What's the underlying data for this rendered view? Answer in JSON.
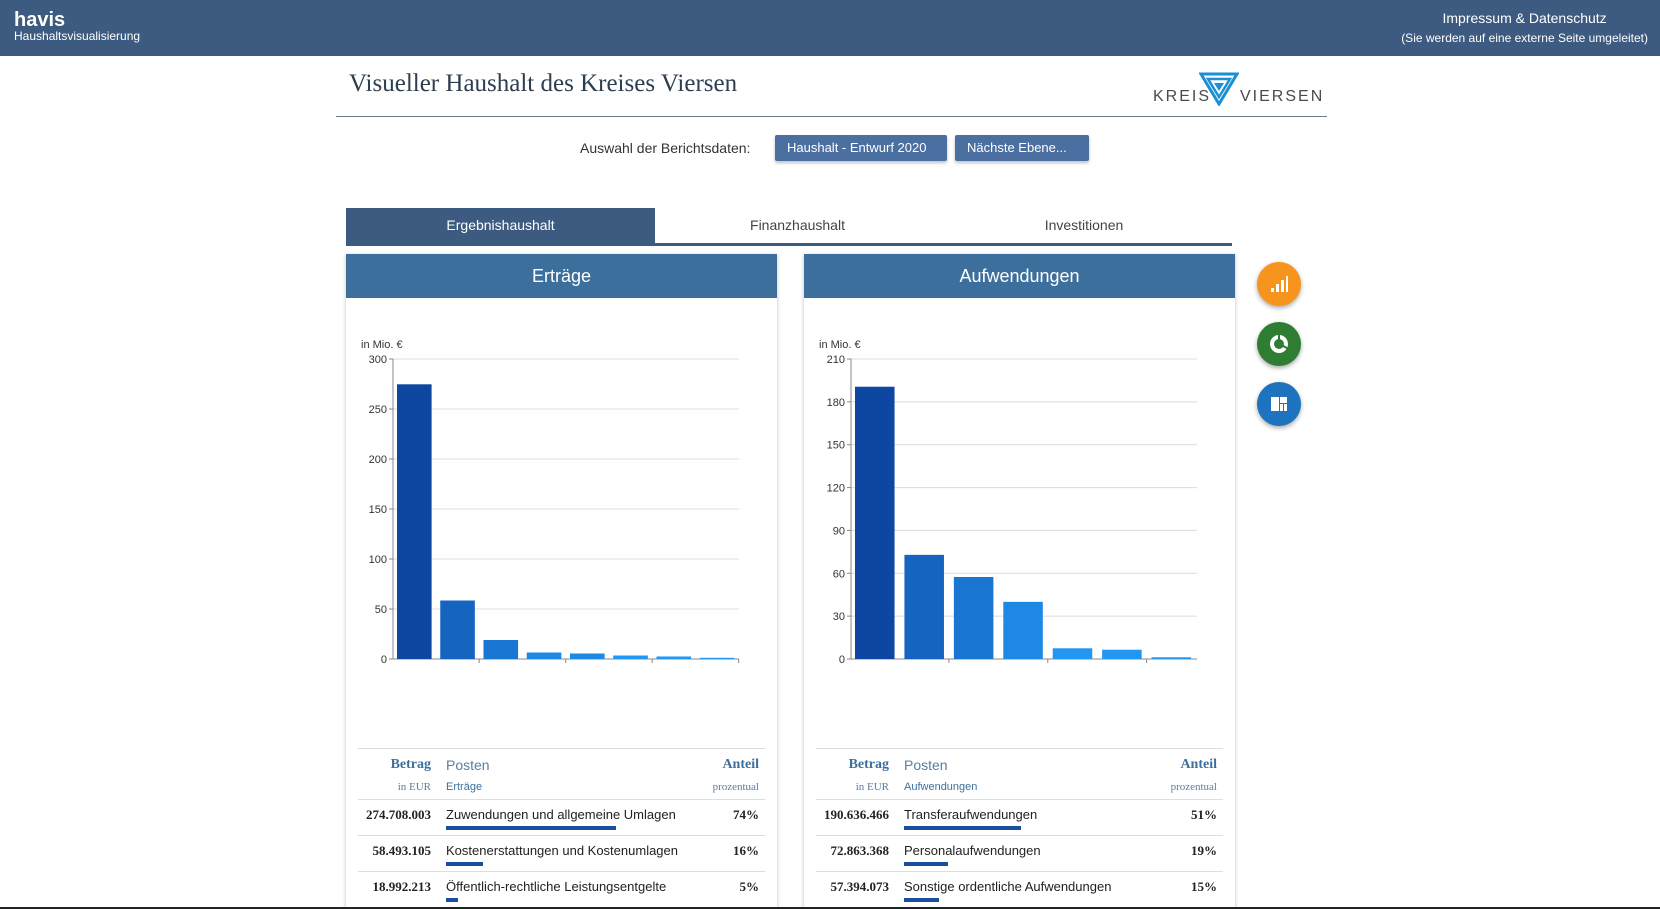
{
  "app": {
    "name": "havis",
    "subtitle": "Haushaltsvisualisierung",
    "imprint_title": "Impressum & Datenschutz",
    "imprint_note": "(Sie werden auf eine externe Seite umgeleitet)"
  },
  "header": {
    "title": "Visueller Haushalt des Kreises Viersen",
    "logo_left": "KREIS",
    "logo_right": "VIERSEN"
  },
  "selector": {
    "label": "Auswahl der Berichtsdaten:",
    "dataset": "Haushalt - Entwurf 2020",
    "level": "Nächste Ebene..."
  },
  "tabs": [
    {
      "label": "Ergebnishaushalt",
      "active": true
    },
    {
      "label": "Finanzhaushalt",
      "active": false
    },
    {
      "label": "Investitionen",
      "active": false
    }
  ],
  "panels": {
    "left": {
      "title": "Erträge",
      "table": {
        "amount_header": "Betrag",
        "amount_sub": "in EUR",
        "item_header": "Posten",
        "item_sub": "Erträge",
        "share_header": "Anteil",
        "share_sub": "prozentual",
        "rows": [
          {
            "amount": "274.708.003",
            "item": "Zuwendungen und allgemeine Umlagen",
            "share": "74%",
            "share_value": 74
          },
          {
            "amount": "58.493.105",
            "item": "Kostenerstattungen und Kostenumlagen",
            "share": "16%",
            "share_value": 16
          },
          {
            "amount": "18.992.213",
            "item": "Öffentlich-rechtliche Leistungsentgelte",
            "share": "5%",
            "share_value": 5
          }
        ]
      }
    },
    "right": {
      "title": "Aufwendungen",
      "table": {
        "amount_header": "Betrag",
        "amount_sub": "in EUR",
        "item_header": "Posten",
        "item_sub": "Aufwendungen",
        "share_header": "Anteil",
        "share_sub": "prozentual",
        "rows": [
          {
            "amount": "190.636.466",
            "item": "Transferaufwendungen",
            "share": "51%",
            "share_value": 51
          },
          {
            "amount": "72.863.368",
            "item": "Personalaufwendungen",
            "share": "19%",
            "share_value": 19
          },
          {
            "amount": "57.394.073",
            "item": "Sonstige ordentliche Aufwendungen",
            "share": "15%",
            "share_value": 15
          }
        ]
      }
    }
  },
  "fabs": [
    {
      "name": "bar-chart-icon",
      "color": "#f7941d"
    },
    {
      "name": "donut-chart-icon",
      "color": "#2e7d32"
    },
    {
      "name": "treemap-icon",
      "color": "#1e73be"
    }
  ],
  "chart_data": [
    {
      "type": "bar",
      "title": "Erträge",
      "ylabel": "in Mio. €",
      "ylim": [
        0,
        300
      ],
      "yticks": [
        0,
        50,
        100,
        150,
        200,
        250,
        300
      ],
      "values": [
        274.7,
        58.5,
        19.0,
        6.5,
        5.5,
        3.5,
        2.5,
        1.2
      ],
      "colors": [
        "#0d47a1",
        "#1565c0",
        "#1976d2",
        "#1e88e5",
        "#1e88e5",
        "#2196f3",
        "#2196f3",
        "#2196f3"
      ]
    },
    {
      "type": "bar",
      "title": "Aufwendungen",
      "ylabel": "in Mio. €",
      "ylim": [
        0,
        210
      ],
      "yticks": [
        0,
        30,
        60,
        90,
        120,
        150,
        180,
        210
      ],
      "values": [
        190.6,
        72.9,
        57.4,
        40.0,
        7.5,
        6.5,
        1.2
      ],
      "colors": [
        "#0d47a1",
        "#1565c0",
        "#1976d2",
        "#1e88e5",
        "#2196f3",
        "#2196f3",
        "#2196f3"
      ]
    }
  ]
}
